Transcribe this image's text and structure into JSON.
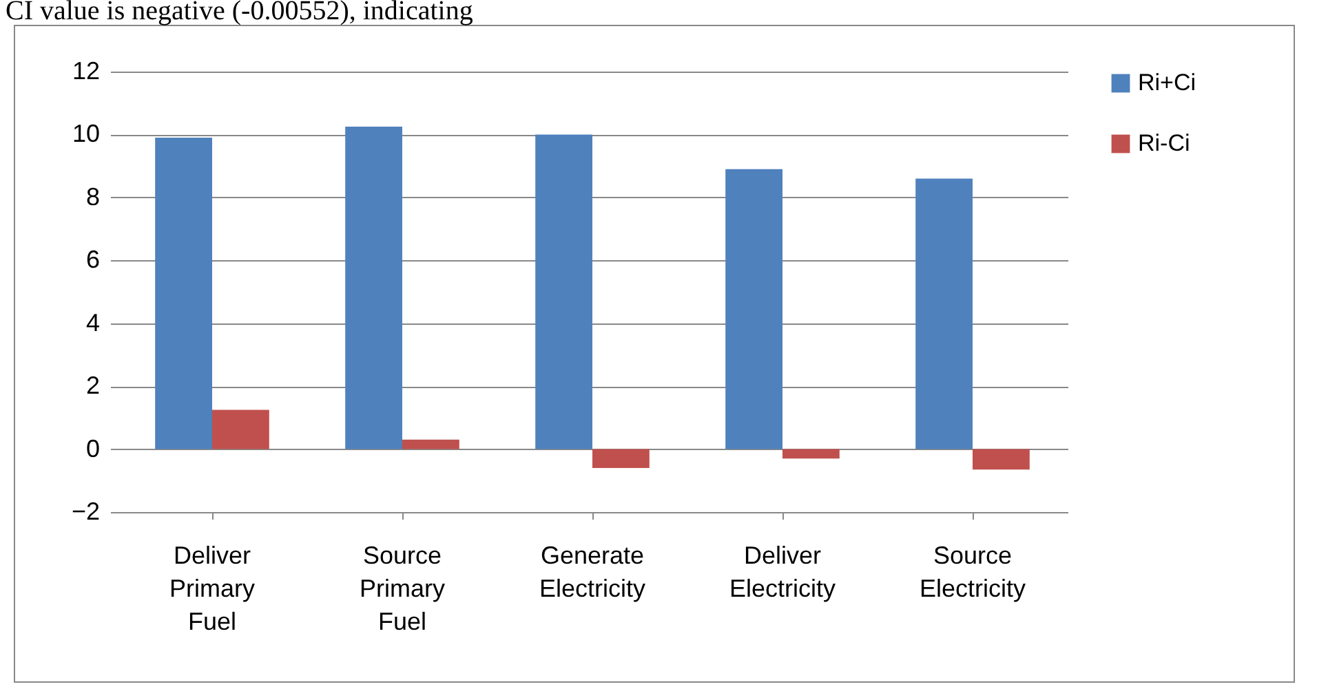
{
  "chart_data": {
    "type": "bar",
    "annotations": [
      "CI value is negative (-0.00552), indicating"
    ],
    "categories": [
      "Deliver Primary Fuel",
      "Source Primary Fuel",
      "Generate Electricity",
      "Deliver Electricity",
      "Source Electricity"
    ],
    "series": [
      {
        "name": "Ri+Ci",
        "color": "#4f81bd",
        "values": [
          9.9,
          10.25,
          10.0,
          8.9,
          8.6
        ]
      },
      {
        "name": "Ri-Ci",
        "color": "#c0504d",
        "values": [
          1.25,
          0.3,
          -0.6,
          -0.3,
          -0.65
        ]
      }
    ],
    "ylim": [
      -2,
      12
    ],
    "yticks": [
      -2,
      0,
      2,
      4,
      6,
      8,
      10,
      12
    ],
    "grid": "y",
    "legend": "right"
  }
}
